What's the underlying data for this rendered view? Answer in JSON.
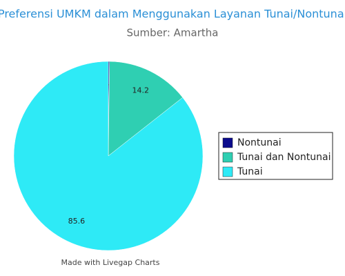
{
  "chart_data": {
    "type": "pie",
    "title": "Preferensi UMKM dalam Menggunakan Layanan Tunai/Nontunai",
    "subtitle": "Sumber: Amartha",
    "categories": [
      "Nontunai",
      "Tunai dan Nontunai",
      "Tunai"
    ],
    "values": [
      0.2,
      14.2,
      85.6
    ],
    "colors": [
      "#0b0b8c",
      "#2fcfb2",
      "#2eeaf6"
    ],
    "legend": "right"
  },
  "footer": "Made with Livegap Charts"
}
